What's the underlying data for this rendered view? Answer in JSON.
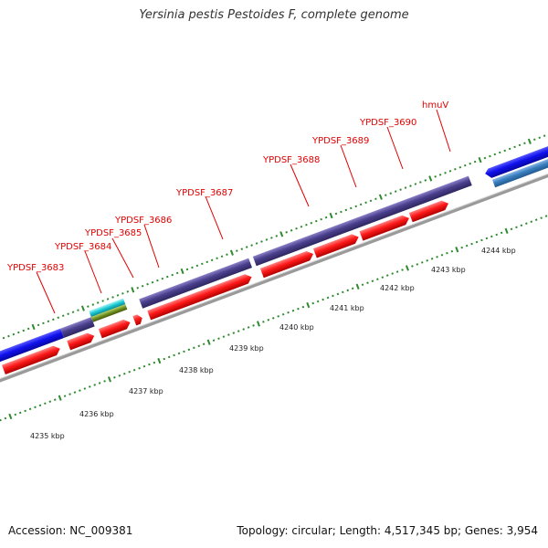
{
  "title": "Yersinia pestis Pestoides F, complete genome",
  "footer": {
    "accession": "Accession: NC_009381",
    "summary": "Topology: circular; Length: 4,517,345 bp; Genes: 3,954"
  },
  "colors": {
    "gene_label": "#e00000",
    "cds": "#ff1a1a",
    "gene_blue": "#1010ee",
    "gene_purple": "#4a3f8c",
    "gene_lightblue": "#3a7fc0",
    "gene_cyan": "#19c8d2",
    "gene_olive": "#6f8f1f",
    "tick": "#2f8a2f",
    "backbone": "#888888"
  },
  "gene_labels": [
    "YPDSF_3683",
    "YPDSF_3684",
    "YPDSF_3685",
    "YPDSF_3686",
    "YPDSF_3687",
    "YPDSF_3688",
    "YPDSF_3689",
    "YPDSF_3690",
    "hmuV"
  ],
  "kbp_labels": [
    "4235 kbp",
    "4236 kbp",
    "4237 kbp",
    "4238 kbp",
    "4239 kbp",
    "4240 kbp",
    "4241 kbp",
    "4242 kbp",
    "4243 kbp",
    "4244 kbp"
  ]
}
